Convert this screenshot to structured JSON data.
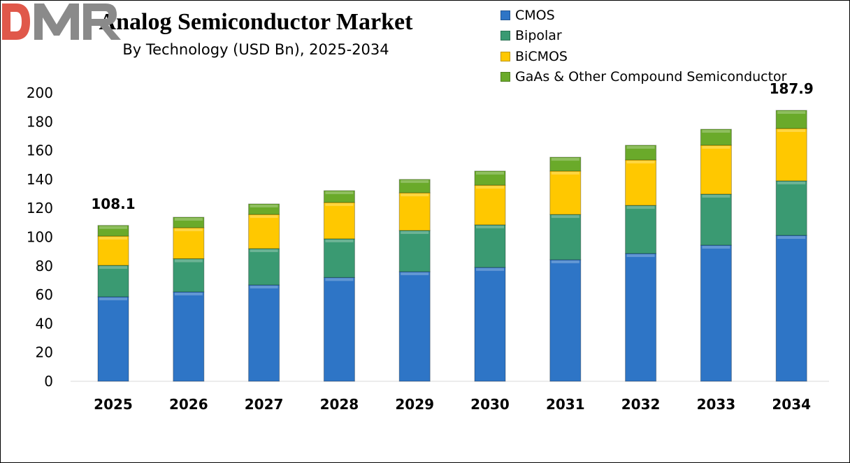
{
  "chart_data": {
    "type": "bar",
    "stacked": true,
    "title": "Analog Semiconductor Market",
    "subtitle": "By Technology (USD Bn), 2025-2034",
    "xlabel": "",
    "ylabel": "",
    "ylim": [
      0,
      200
    ],
    "yticks": [
      0,
      20,
      40,
      60,
      80,
      100,
      120,
      140,
      160,
      180,
      200
    ],
    "grid": false,
    "legend_position": "top-right",
    "categories": [
      "2025",
      "2026",
      "2027",
      "2028",
      "2029",
      "2030",
      "2031",
      "2032",
      "2033",
      "2034"
    ],
    "series": [
      {
        "name": "CMOS",
        "color": "#2E75C6",
        "values": [
          58.6,
          62.0,
          66.8,
          72.0,
          76.0,
          79.0,
          84.3,
          88.6,
          94.4,
          101.2
        ]
      },
      {
        "name": "Bipolar",
        "color": "#3A9A72",
        "values": [
          21.8,
          23.0,
          25.2,
          26.8,
          28.6,
          29.5,
          31.4,
          33.4,
          35.4,
          37.8
        ]
      },
      {
        "name": "BiCMOS",
        "color": "#FFC800",
        "values": [
          20.3,
          21.5,
          23.7,
          25.2,
          26.1,
          27.5,
          30.1,
          31.5,
          33.9,
          36.3
        ]
      },
      {
        "name": "GaAs & Other Compound Semiconductor",
        "color": "#6AAA2A",
        "values": [
          7.4,
          7.3,
          7.3,
          8.2,
          9.3,
          9.8,
          9.6,
          10.2,
          11.1,
          12.6
        ]
      }
    ],
    "annotations": [
      {
        "category": "2025",
        "text": "108.1"
      },
      {
        "category": "2034",
        "text": "187.9"
      }
    ]
  },
  "logo": {
    "text": "DMR",
    "colors": [
      "#E0584A",
      "#8A8A8A"
    ]
  }
}
